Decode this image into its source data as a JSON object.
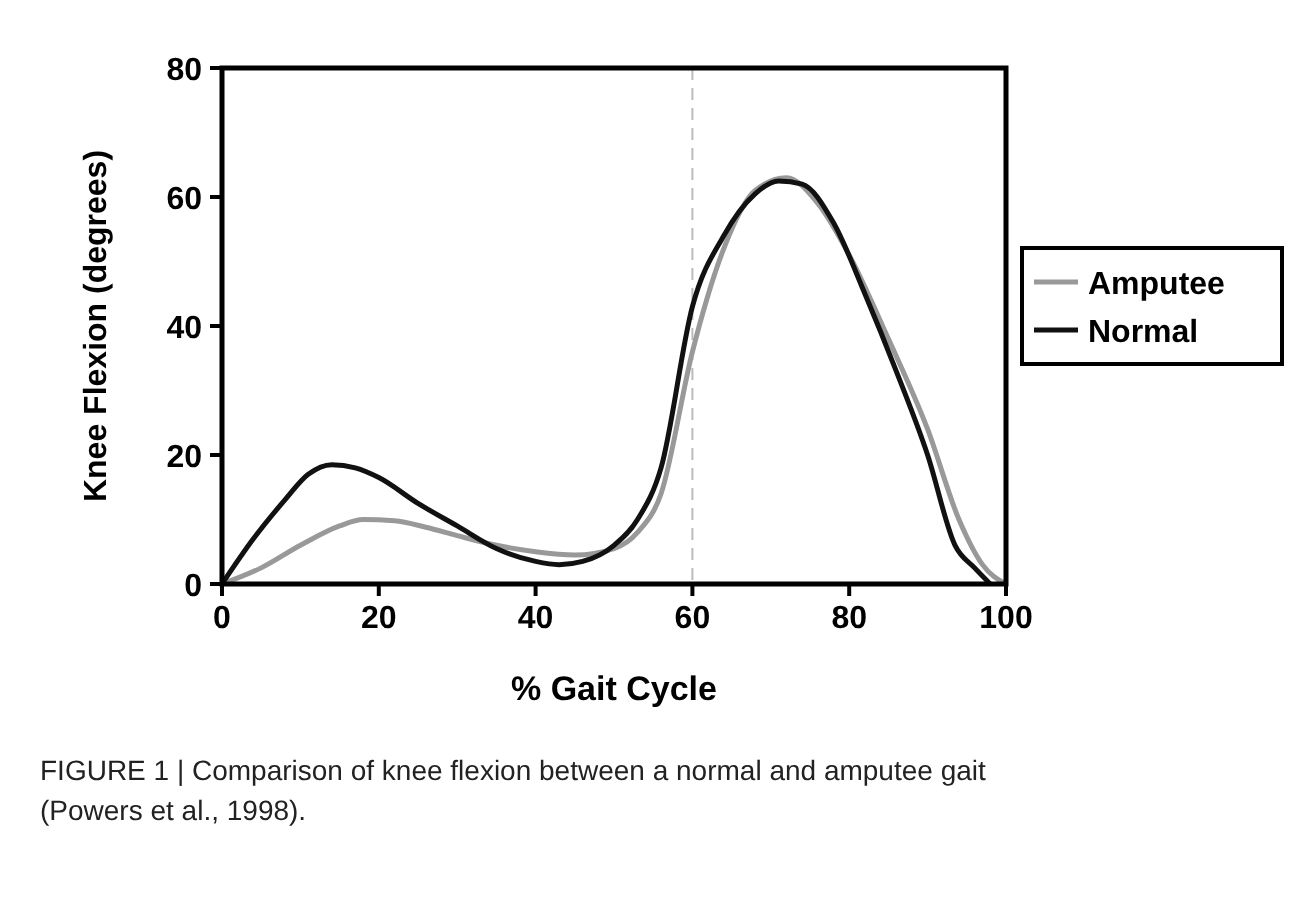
{
  "chart_data": {
    "type": "line",
    "xlabel": "% Gait Cycle",
    "ylabel": "Knee Flexion (degrees)",
    "xlim": [
      0,
      100
    ],
    "ylim": [
      0,
      80
    ],
    "xticks": [
      0,
      20,
      40,
      60,
      80,
      100
    ],
    "yticks": [
      0,
      20,
      40,
      60,
      80
    ],
    "legend": "right",
    "grid": false,
    "marker": "none",
    "line_style": "solid",
    "ref_lines": [
      {
        "axis": "x",
        "value": 60,
        "color": "#bbbbbb",
        "line_style": "dashed"
      }
    ],
    "annotations": [
      "FIGURE 1 | Comparison of knee flexion between a normal and amputee gait (Powers et al., 1998)."
    ],
    "series": [
      {
        "name": "Amputee",
        "color": "#999999",
        "x": [
          0,
          5,
          10,
          15,
          18,
          22,
          26,
          30,
          35,
          40,
          45,
          50,
          53,
          56,
          60,
          64,
          68,
          72,
          76,
          80,
          85,
          90,
          94,
          97,
          100
        ],
        "values": [
          0,
          2.5,
          6,
          9,
          10,
          9.8,
          8.8,
          7.5,
          6,
          5,
          4.5,
          5.5,
          8,
          14,
          36,
          52,
          61,
          63,
          59,
          51,
          38,
          24,
          10,
          3,
          0
        ]
      },
      {
        "name": "Normal",
        "color": "#111111",
        "x": [
          0,
          4,
          8,
          11,
          14,
          17,
          20,
          25,
          30,
          35,
          40,
          43,
          46,
          50,
          53,
          56,
          60,
          64,
          68,
          71,
          74,
          78,
          82,
          86,
          90,
          93.5,
          96,
          98
        ],
        "values": [
          0,
          7,
          13,
          17,
          18.5,
          18,
          16.5,
          12.5,
          9,
          5.5,
          3.5,
          3,
          3.5,
          6,
          10,
          18,
          43,
          54,
          60.5,
          62.5,
          62,
          56,
          45,
          33,
          20,
          6,
          2.5,
          0
        ]
      }
    ]
  }
}
